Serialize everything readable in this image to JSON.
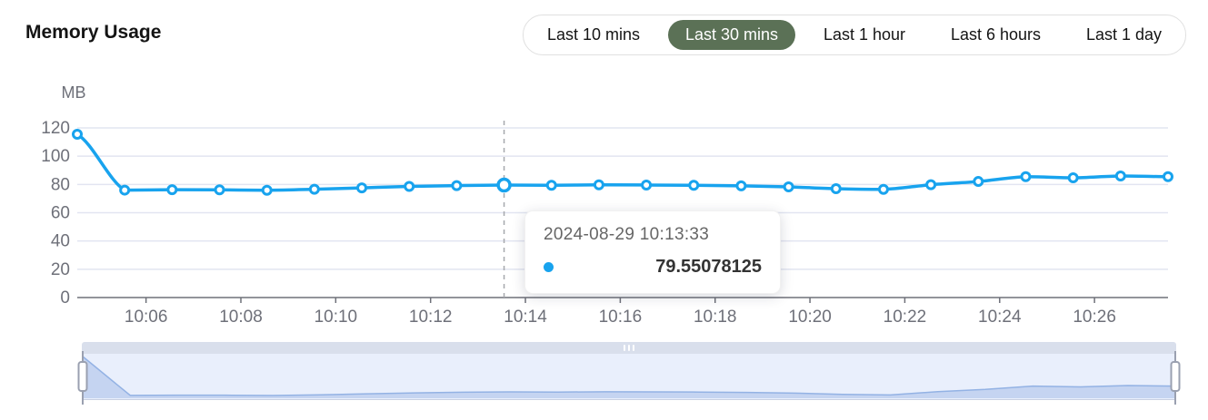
{
  "header": {
    "title": "Memory Usage"
  },
  "time_range": {
    "options": [
      "Last 10 mins",
      "Last 30 mins",
      "Last 1 hour",
      "Last 6 hours",
      "Last 1 day"
    ],
    "selected": "Last 30 mins",
    "selected_index": 1,
    "selected_color": "#5b7156"
  },
  "tooltip": {
    "date": "2024-08-29 10:13:33",
    "value": "79.55078125"
  },
  "chart_data": {
    "type": "line",
    "title": "Memory Usage",
    "ylabel": "MB",
    "xlabel": "",
    "unit": "MB",
    "x": [
      "10:04:33",
      "10:05:33",
      "10:06:33",
      "10:07:33",
      "10:08:33",
      "10:09:33",
      "10:10:33",
      "10:11:33",
      "10:12:33",
      "10:13:33",
      "10:14:33",
      "10:15:33",
      "10:16:33",
      "10:17:33",
      "10:18:33",
      "10:19:33",
      "10:20:33",
      "10:21:33",
      "10:22:33",
      "10:23:33",
      "10:24:33",
      "10:25:33",
      "10:26:33",
      "10:27:33"
    ],
    "values": [
      115.5,
      76.0,
      76.3,
      76.2,
      75.9,
      76.6,
      77.6,
      78.6,
      79.2,
      79.55078125,
      79.4,
      79.7,
      79.6,
      79.4,
      79.0,
      78.3,
      77.0,
      76.5,
      79.8,
      82.1,
      85.5,
      84.7,
      86.0,
      85.5
    ],
    "yticks": [
      0,
      20,
      40,
      60,
      80,
      100,
      120
    ],
    "ylim": [
      0,
      120
    ],
    "xticks": [
      "10:06",
      "10:08",
      "10:10",
      "10:12",
      "10:14",
      "10:16",
      "10:18",
      "10:20",
      "10:22",
      "10:24",
      "10:26"
    ],
    "grid": true,
    "smooth": true,
    "legend": "none",
    "hover": {
      "index": 9,
      "label": "2024-08-29 10:13:33",
      "value": 79.55078125,
      "value_text": "79.55078125"
    },
    "colors": {
      "line": "#18a3ee",
      "grid": "#e2e5f1",
      "axis": "#6e7079",
      "pointer": "#a6a8ad"
    }
  },
  "datazoom": {
    "colors": {
      "bar": "#d9dfec",
      "background": "#e9effc",
      "area_fill": "#c5d4f1",
      "area_line": "#93b2e4",
      "handle_border": "#9aa0b0",
      "stem": "#9aa0b0"
    }
  }
}
